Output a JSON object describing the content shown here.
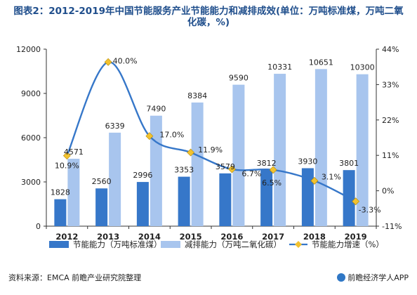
{
  "title": "图表2：2012-2019年中国节能服务产业节能能力和减排成效(单位：万吨标准煤，万吨二氧化碳，%)",
  "colors": {
    "bar_energy": "#3677c9",
    "bar_emission": "#a8c5ee",
    "line": "#3677c9",
    "marker": "#f2c230",
    "axis_text": "#222222"
  },
  "chart_data": {
    "type": "bar",
    "categories": [
      "2012",
      "2013",
      "2014",
      "2015",
      "2016",
      "2017",
      "2018",
      "2019"
    ],
    "series": [
      {
        "name": "节能能力（万吨标准煤）",
        "kind": "bar",
        "axis": "left",
        "values": [
          1828,
          2560,
          2996,
          3353,
          3579,
          3812,
          3930,
          3801
        ]
      },
      {
        "name": "减排能力（万吨二氧化碳）",
        "kind": "bar",
        "axis": "left",
        "values": [
          4571,
          6339,
          7490,
          8384,
          9590,
          10331,
          10651,
          10300
        ]
      },
      {
        "name": "节能能力增速（%）",
        "kind": "line",
        "axis": "right",
        "values": [
          10.9,
          40.0,
          17.0,
          11.9,
          6.7,
          6.5,
          3.1,
          -3.3
        ],
        "labels": [
          "10.9%",
          "40.0%",
          "17.0%",
          "11.9%",
          "6.7%",
          "6.5%",
          "3.1%",
          "-3.3%"
        ]
      }
    ],
    "y_left": {
      "min": 0,
      "max": 12000,
      "ticks": [
        "0",
        "3000",
        "6000",
        "9000",
        "12000"
      ]
    },
    "y_right": {
      "min": -11,
      "max": 44,
      "ticks": [
        "-11%",
        "0%",
        "11%",
        "22%",
        "33%",
        "44%"
      ]
    },
    "grid": false,
    "legend_position": "bottom"
  },
  "footer": {
    "source": "资料来源：EMCA 前瞻产业研究院整理",
    "brand": "前瞻经济学人APP"
  }
}
